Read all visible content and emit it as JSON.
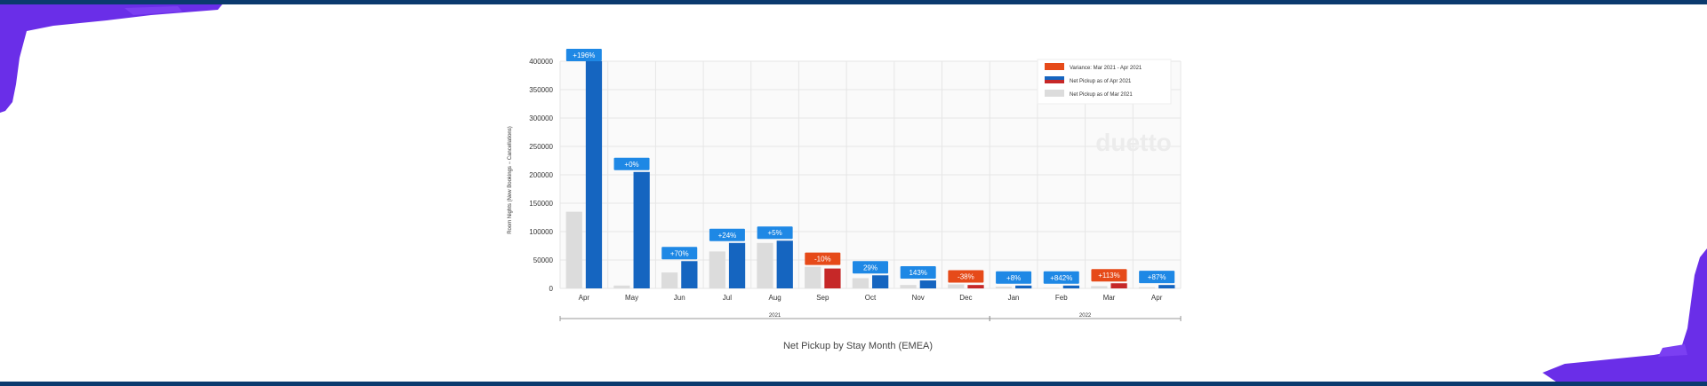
{
  "chart_data": {
    "type": "bar",
    "title": "Net Pickup by Stay Month (EMEA)",
    "ylabel": "Room Nights (New Bookings − Cancellations)",
    "xlabel": "",
    "ylim": [
      0,
      400000
    ],
    "yticks": [
      "0",
      "50000",
      "100000",
      "150000",
      "200000",
      "250000",
      "300000",
      "350000",
      "400000"
    ],
    "year_groups": [
      {
        "label": "2021",
        "months": [
          "Apr",
          "May",
          "Jun",
          "Jul",
          "Aug",
          "Sep",
          "Oct",
          "Nov",
          "Dec"
        ]
      },
      {
        "label": "2022",
        "months": [
          "Jan",
          "Feb",
          "Mar",
          "Apr"
        ]
      }
    ],
    "categories": [
      "Apr",
      "May",
      "Jun",
      "Jul",
      "Aug",
      "Sep",
      "Oct",
      "Nov",
      "Dec",
      "Jan",
      "Feb",
      "Mar",
      "Apr"
    ],
    "series": [
      {
        "name": "Net Pickup as of Mar 2021",
        "values": [
          135000,
          5000,
          28000,
          65000,
          80000,
          38000,
          18000,
          6000,
          7000,
          3000,
          1000,
          4000,
          2000
        ]
      },
      {
        "name": "Net Pickup as of Apr 2021",
        "values": [
          400000,
          205000,
          48000,
          80000,
          84000,
          35000,
          23000,
          14000,
          6000,
          5000,
          5000,
          9000,
          6000
        ]
      }
    ],
    "variance": [
      "+196%",
      "+0%",
      "+70%",
      "+24%",
      "+5%",
      "-10%",
      "29%",
      "143%",
      "-38%",
      "+8%",
      "+842%",
      "+113%",
      "+87%"
    ],
    "legend": [
      {
        "label": "Variance: Mar 2021 - Apr 2021",
        "swatch": "variance"
      },
      {
        "label": "Net Pickup as of Apr 2021",
        "swatch": "current"
      },
      {
        "label": "Net Pickup as of Mar 2021",
        "swatch": "previous"
      }
    ],
    "legend_position": "top-right",
    "watermark": "duetto",
    "grid": true,
    "colors": {
      "positive": "#1e88e5",
      "positive_bar": "#1565c0",
      "negative": "#e64a19",
      "negative_bar": "#c62828",
      "previous": "#dcdcdc"
    }
  }
}
